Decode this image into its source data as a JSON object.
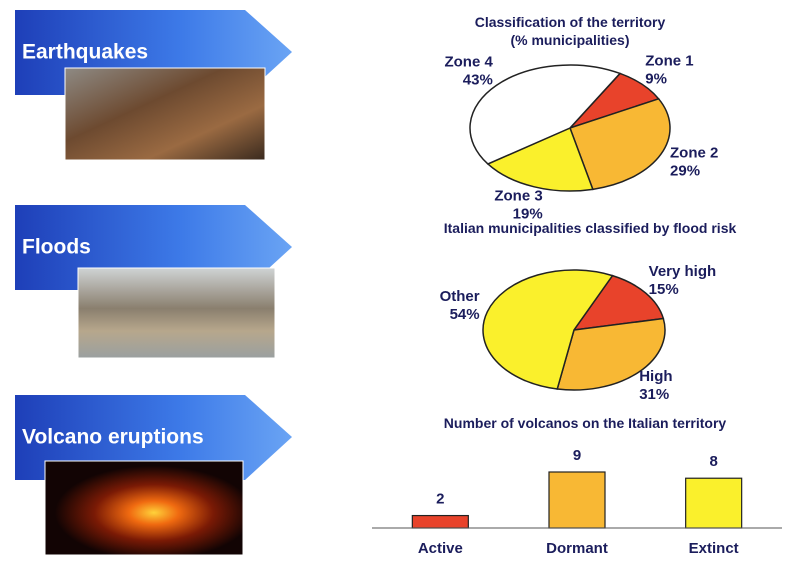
{
  "sections": [
    {
      "label": "Earthquakes"
    },
    {
      "label": "Floods"
    },
    {
      "label": "Volcano eruptions"
    }
  ],
  "chart_data": [
    {
      "type": "pie",
      "title": "Classification of the territory",
      "subtitle": "(% municipalities)",
      "categories": [
        "Zone 1",
        "Zone 2",
        "Zone 3",
        "Zone 4"
      ],
      "values": [
        9,
        29,
        19,
        43
      ],
      "value_labels": [
        "9%",
        "29%",
        "19%",
        "43%"
      ],
      "colors": [
        "#e8432b",
        "#f8b834",
        "#faf02c",
        "#ffffff"
      ]
    },
    {
      "type": "pie",
      "title": "Italian municipalities classified by flood risk",
      "categories": [
        "Very high",
        "High",
        "Other"
      ],
      "values": [
        15,
        31,
        54
      ],
      "value_labels": [
        "15%",
        "31%",
        "54%"
      ],
      "colors": [
        "#e8432b",
        "#f8b834",
        "#faf02c"
      ]
    },
    {
      "type": "bar",
      "title": "Number of volcanos on the Italian territory",
      "categories": [
        "Active",
        "Dormant",
        "Extinct"
      ],
      "values": [
        2,
        9,
        8
      ],
      "colors": [
        "#e8432b",
        "#f8b834",
        "#faf02c"
      ],
      "ylim": [
        0,
        9
      ]
    }
  ]
}
